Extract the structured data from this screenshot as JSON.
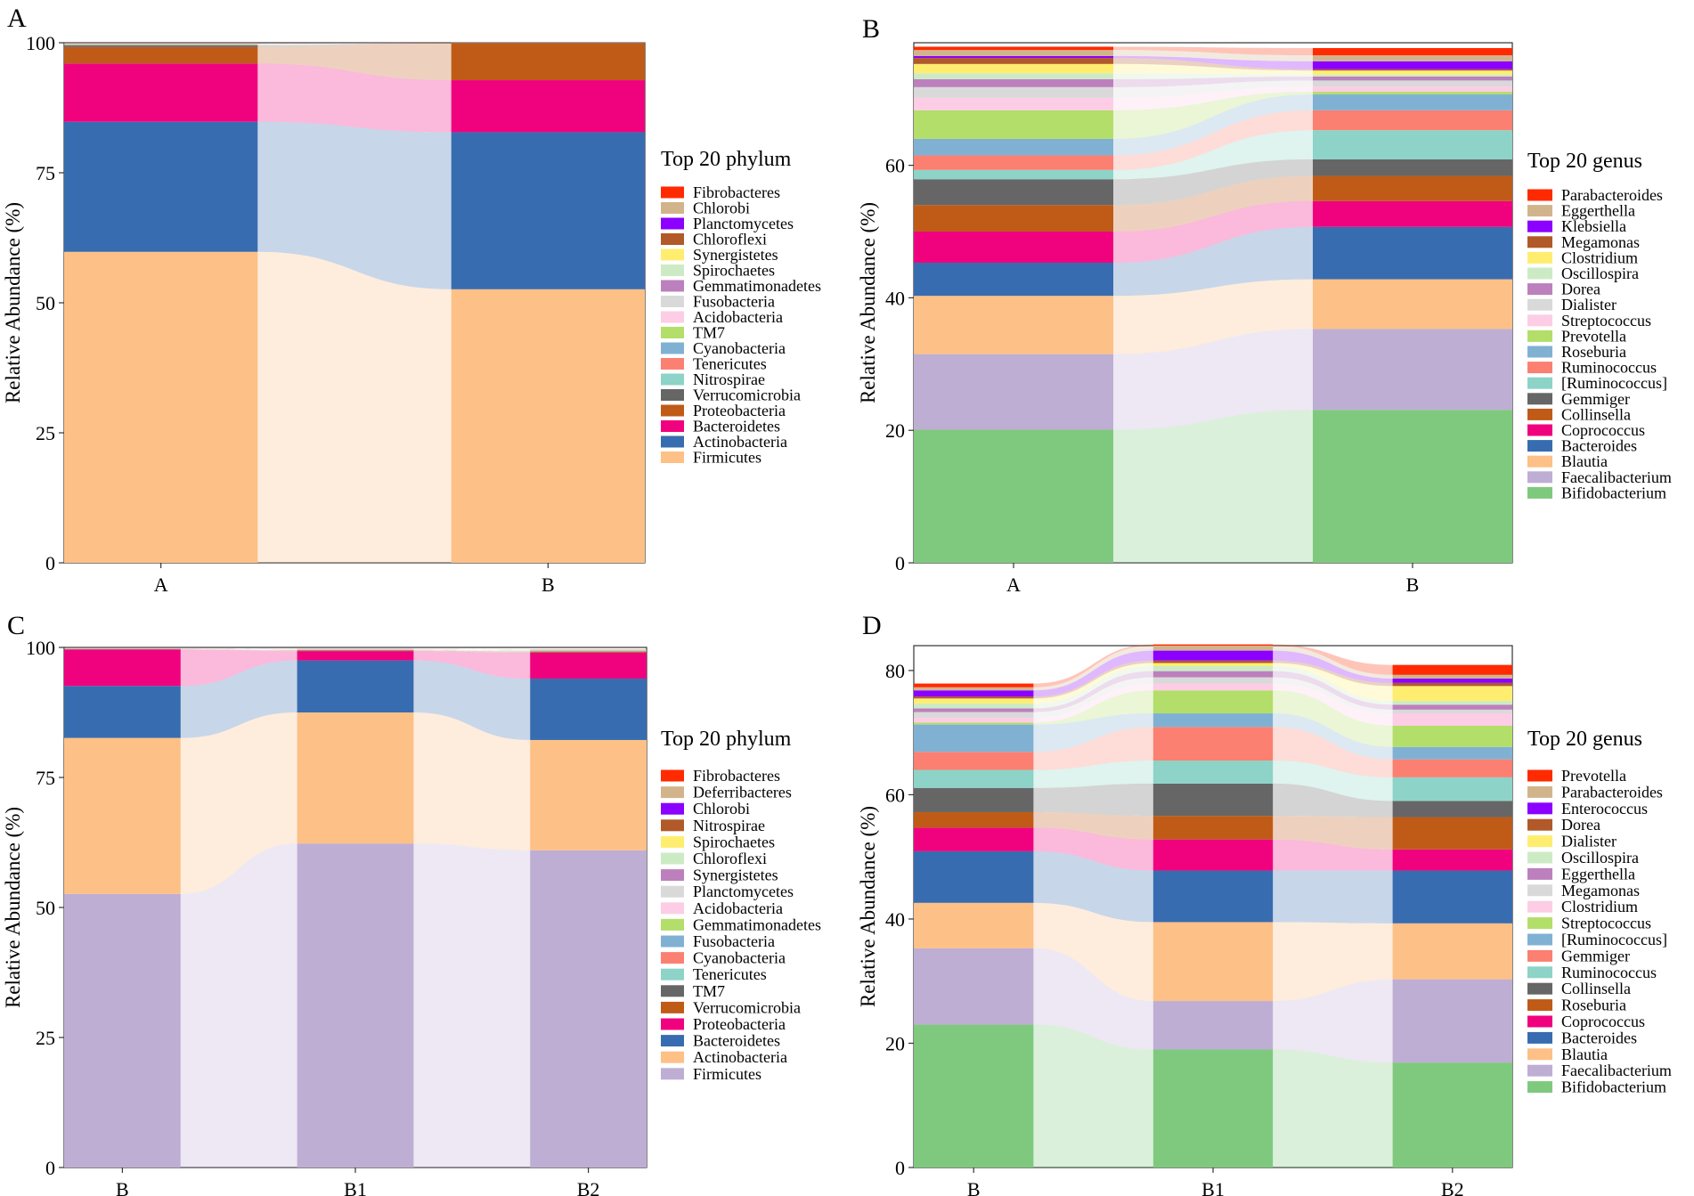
{
  "colors": {
    "Bifidobacterium": "#7FC97F",
    "Faecalibacterium": "#BEAED4",
    "Blautia": "#FDC086",
    "Bacteroides": "#386CB0",
    "Coprococcus": "#F0027F",
    "Collinsella": "#BF5B17",
    "Gemmiger": "#666666",
    "[Ruminococcus]": "#8DD3C7",
    "Ruminococcus": "#FB8072",
    "Roseburia": "#80B1D3",
    "Prevotella": "#B3DE69",
    "Streptococcus": "#FCCDE5",
    "Dialister": "#D9D9D9",
    "Dorea": "#BC80BD",
    "Oscillospira": "#CCEBC5",
    "Clostridium": "#FFED6F",
    "Megamonas": "#B15928",
    "Klebsiella": "#8B00FF",
    "Eggerthella": "#D2B48C",
    "Parabacteroides": "#FF2A00",
    "Enterococcus": "#8B00FF",
    "Firmicutes": "#FDC086",
    "Actinobacteria": "#386CB0",
    "Bacteroidetes": "#F0027F",
    "Proteobacteria": "#BF5B17",
    "Verrucomicrobia": "#666666",
    "Nitrospirae": "#8DD3C7",
    "Tenericutes": "#FB8072",
    "Cyanobacteria": "#80B1D3",
    "TM7": "#B3DE69",
    "Acidobacteria": "#FCCDE5",
    "Fusobacteria": "#D9D9D9",
    "Gemmatimonadetes": "#BC80BD",
    "Spirochaetes": "#CCEBC5",
    "Synergistetes": "#FFED6F",
    "Chloroflexi": "#B15928",
    "Planctomycetes": "#8B00FF",
    "Chlorobi": "#D2B48C",
    "Fibrobacteres": "#FF2A00"
  },
  "chart_data": [
    {
      "panel": "A",
      "type": "bar",
      "subtype": "stacked-alluvial",
      "categories": [
        "A",
        "B"
      ],
      "xlabel": "",
      "ylabel": "Relative Abundance (%)",
      "ylim": [
        0,
        100
      ],
      "yticks": [
        0,
        25,
        50,
        75,
        100
      ],
      "legend_title": "Top 20 phylum",
      "legend": [
        "Fibrobacteres",
        "Chlorobi",
        "Planctomycetes",
        "Chloroflexi",
        "Synergistetes",
        "Spirochaetes",
        "Gemmatimonadetes",
        "Fusobacteria",
        "Acidobacteria",
        "TM7",
        "Cyanobacteria",
        "Tenericutes",
        "Nitrospirae",
        "Verrucomicrobia",
        "Proteobacteria",
        "Bacteroidetes",
        "Actinobacteria",
        "Firmicutes"
      ],
      "series": [
        {
          "name": "Firmicutes",
          "values": [
            59.8,
            52.6
          ]
        },
        {
          "name": "Actinobacteria",
          "values": [
            25.0,
            30.2
          ]
        },
        {
          "name": "Bacteroidetes",
          "values": [
            11.2,
            10.0
          ]
        },
        {
          "name": "Proteobacteria",
          "values": [
            3.2,
            7.1
          ]
        },
        {
          "name": "Verrucomicrobia",
          "values": [
            0.3,
            0.05
          ]
        },
        {
          "name": "Nitrospirae",
          "values": [
            0.1,
            0.02
          ]
        },
        {
          "name": "Tenericutes",
          "values": [
            0.1,
            0.02
          ]
        },
        {
          "name": "Cyanobacteria",
          "values": [
            0.05,
            0.01
          ]
        },
        {
          "name": "TM7",
          "values": [
            0.05,
            0.01
          ]
        },
        {
          "name": "Acidobacteria",
          "values": [
            0.03,
            0.01
          ]
        },
        {
          "name": "Fusobacteria",
          "values": [
            0.03,
            0.01
          ]
        },
        {
          "name": "Gemmatimonadetes",
          "values": [
            0.02,
            0.01
          ]
        },
        {
          "name": "Spirochaetes",
          "values": [
            0.02,
            0.01
          ]
        },
        {
          "name": "Synergistetes",
          "values": [
            0.02,
            0.01
          ]
        },
        {
          "name": "Chloroflexi",
          "values": [
            0.02,
            0.01
          ]
        },
        {
          "name": "Planctomycetes",
          "values": [
            0.01,
            0.01
          ]
        },
        {
          "name": "Chlorobi",
          "values": [
            0.01,
            0.01
          ]
        },
        {
          "name": "Fibrobacteres",
          "values": [
            0.01,
            0.01
          ]
        }
      ]
    },
    {
      "panel": "B",
      "type": "bar",
      "subtype": "stacked-alluvial",
      "categories": [
        "A",
        "B"
      ],
      "xlabel": "",
      "ylabel": "Relative Abundance (%)",
      "ylim": [
        0,
        78.5
      ],
      "yticks": [
        0,
        20,
        40,
        60
      ],
      "legend_title": "Top 20 genus",
      "legend": [
        "Parabacteroides",
        "Eggerthella",
        "Klebsiella",
        "Megamonas",
        "Clostridium",
        "Oscillospira",
        "Dorea",
        "Dialister",
        "Streptococcus",
        "Prevotella",
        "Roseburia",
        "Ruminococcus",
        "[Ruminococcus]",
        "Gemmiger",
        "Collinsella",
        "Coprococcus",
        "Bacteroides",
        "Blautia",
        "Faecalibacterium",
        "Bifidobacterium"
      ],
      "series": [
        {
          "name": "Bifidobacterium",
          "values": [
            20.1,
            23.1
          ]
        },
        {
          "name": "Faecalibacterium",
          "values": [
            11.4,
            12.2
          ]
        },
        {
          "name": "Blautia",
          "values": [
            8.8,
            7.5
          ]
        },
        {
          "name": "Bacteroides",
          "values": [
            5.0,
            7.9
          ]
        },
        {
          "name": "Coprococcus",
          "values": [
            4.7,
            3.9
          ]
        },
        {
          "name": "Collinsella",
          "values": [
            4.0,
            3.8
          ]
        },
        {
          "name": "Gemmiger",
          "values": [
            3.9,
            2.5
          ]
        },
        {
          "name": "[Ruminococcus]",
          "values": [
            1.4,
            4.4
          ]
        },
        {
          "name": "Ruminococcus",
          "values": [
            2.2,
            3.0
          ]
        },
        {
          "name": "Roseburia",
          "values": [
            2.5,
            2.4
          ]
        },
        {
          "name": "Prevotella",
          "values": [
            4.3,
            0.4
          ]
        },
        {
          "name": "Streptococcus",
          "values": [
            1.9,
            0.8
          ]
        },
        {
          "name": "Dialister",
          "values": [
            1.6,
            0.9
          ]
        },
        {
          "name": "Dorea",
          "values": [
            1.2,
            0.6
          ]
        },
        {
          "name": "Oscillospira",
          "values": [
            0.9,
            0.3
          ]
        },
        {
          "name": "Clostridium",
          "values": [
            1.4,
            0.6
          ]
        },
        {
          "name": "Megamonas",
          "values": [
            0.9,
            0.2
          ]
        },
        {
          "name": "Klebsiella",
          "values": [
            0.3,
            1.2
          ]
        },
        {
          "name": "Eggerthella",
          "values": [
            0.9,
            0.9
          ]
        },
        {
          "name": "Parabacteroides",
          "values": [
            0.5,
            1.1
          ]
        }
      ]
    },
    {
      "panel": "C",
      "type": "bar",
      "subtype": "stacked-alluvial",
      "categories": [
        "B",
        "B1",
        "B2"
      ],
      "xlabel": "",
      "ylabel": "Relative Abundance (%)",
      "ylim": [
        0,
        100
      ],
      "yticks": [
        0,
        25,
        50,
        75,
        100
      ],
      "legend_title": "Top 20 phylum",
      "legend": [
        "Fibrobacteres",
        "Deferribacteres",
        "Chlorobi",
        "Nitrospirae",
        "Spirochaetes",
        "Chloroflexi",
        "Synergistetes",
        "Planctomycetes",
        "Acidobacteria",
        "Gemmatimonadetes",
        "Fusobacteria",
        "Cyanobacteria",
        "Tenericutes",
        "TM7",
        "Verrucomicrobia",
        "Proteobacteria",
        "Bacteroidetes",
        "Actinobacteria",
        "Firmicutes"
      ],
      "colors_override": {
        "Firmicutes": "#BEAED4",
        "Actinobacteria": "#FDC086",
        "Bacteroidetes": "#386CB0",
        "Proteobacteria": "#F0027F",
        "Verrucomicrobia": "#BF5B17",
        "TM7": "#666666",
        "Tenericutes": "#8DD3C7",
        "Cyanobacteria": "#FB8072",
        "Fusobacteria": "#80B1D3",
        "Gemmatimonadetes": "#B3DE69",
        "Acidobacteria": "#FCCDE5",
        "Planctomycetes": "#D9D9D9",
        "Synergistetes": "#BC80BD",
        "Chloroflexi": "#CCEBC5",
        "Spirochaetes": "#FFED6F",
        "Nitrospirae": "#B15928",
        "Chlorobi": "#8B00FF",
        "Deferribacteres": "#D2B48C",
        "Fibrobacteres": "#FF2A00"
      },
      "series": [
        {
          "name": "Firmicutes",
          "values": [
            52.6,
            62.3,
            61.0
          ]
        },
        {
          "name": "Actinobacteria",
          "values": [
            30.0,
            25.2,
            21.2
          ]
        },
        {
          "name": "Bacteroidetes",
          "values": [
            10.0,
            10.0,
            11.8
          ]
        },
        {
          "name": "Proteobacteria",
          "values": [
            7.0,
            1.8,
            5.0
          ]
        },
        {
          "name": "Verrucomicrobia",
          "values": [
            0.05,
            0.1,
            0.2
          ]
        },
        {
          "name": "TM7",
          "values": [
            0.02,
            0.05,
            0.05
          ]
        },
        {
          "name": "Tenericutes",
          "values": [
            0.02,
            0.05,
            0.05
          ]
        },
        {
          "name": "Cyanobacteria",
          "values": [
            0.01,
            0.05,
            0.05
          ]
        },
        {
          "name": "Fusobacteria",
          "values": [
            0.01,
            0.03,
            0.05
          ]
        },
        {
          "name": "Gemmatimonadetes",
          "values": [
            0.01,
            0.02,
            0.05
          ]
        },
        {
          "name": "Acidobacteria",
          "values": [
            0.01,
            0.02,
            0.03
          ]
        },
        {
          "name": "Planctomycetes",
          "values": [
            0.01,
            0.02,
            0.03
          ]
        },
        {
          "name": "Synergistetes",
          "values": [
            0.01,
            0.02,
            0.02
          ]
        },
        {
          "name": "Chloroflexi",
          "values": [
            0.01,
            0.01,
            0.02
          ]
        },
        {
          "name": "Spirochaetes",
          "values": [
            0.01,
            0.01,
            0.02
          ]
        },
        {
          "name": "Nitrospirae",
          "values": [
            0.01,
            0.01,
            0.02
          ]
        },
        {
          "name": "Chlorobi",
          "values": [
            0.01,
            0.01,
            0.01
          ]
        },
        {
          "name": "Deferribacteres",
          "values": [
            0.01,
            0.01,
            0.01
          ]
        },
        {
          "name": "Fibrobacteres",
          "values": [
            0.01,
            0.01,
            0.01
          ]
        }
      ]
    },
    {
      "panel": "D",
      "type": "bar",
      "subtype": "stacked-alluvial",
      "categories": [
        "B",
        "B1",
        "B2"
      ],
      "xlabel": "",
      "ylabel": "Relative Abundance (%)",
      "ylim": [
        0,
        84
      ],
      "yticks": [
        0,
        20,
        40,
        60,
        80
      ],
      "legend_title": "Top 20 genus",
      "legend": [
        "Prevotella",
        "Parabacteroides",
        "Enterococcus",
        "Dorea",
        "Dialister",
        "Oscillospira",
        "Eggerthella",
        "Megamonas",
        "Clostridium",
        "Streptococcus",
        "[Ruminococcus]",
        "Gemmiger",
        "Ruminococcus",
        "Collinsella",
        "Roseburia",
        "Coprococcus",
        "Bacteroides",
        "Blautia",
        "Faecalibacterium",
        "Bifidobacterium"
      ],
      "colors_override": {
        "Bifidobacterium": "#7FC97F",
        "Faecalibacterium": "#BEAED4",
        "Blautia": "#FDC086",
        "Bacteroides": "#386CB0",
        "Coprococcus": "#F0027F",
        "Roseburia": "#BF5B17",
        "Collinsella": "#666666",
        "Ruminococcus": "#8DD3C7",
        "Gemmiger": "#FB8072",
        "[Ruminococcus]": "#80B1D3",
        "Streptococcus": "#B3DE69",
        "Clostridium": "#FCCDE5",
        "Megamonas": "#D9D9D9",
        "Eggerthella": "#BC80BD",
        "Oscillospira": "#CCEBC5",
        "Dialister": "#FFED6F",
        "Dorea": "#B15928",
        "Enterococcus": "#8B00FF",
        "Parabacteroides": "#D2B48C",
        "Prevotella": "#FF2A00"
      },
      "series": [
        {
          "name": "Bifidobacterium",
          "values": [
            23.0,
            19.0,
            16.9
          ]
        },
        {
          "name": "Faecalibacterium",
          "values": [
            12.3,
            7.8,
            13.4
          ]
        },
        {
          "name": "Blautia",
          "values": [
            7.3,
            12.7,
            9.0
          ]
        },
        {
          "name": "Bacteroides",
          "values": [
            8.3,
            8.3,
            8.5
          ]
        },
        {
          "name": "Coprococcus",
          "values": [
            3.8,
            5.0,
            3.4
          ]
        },
        {
          "name": "Roseburia",
          "values": [
            2.5,
            3.8,
            5.2
          ]
        },
        {
          "name": "Collinsella",
          "values": [
            3.9,
            5.2,
            2.6
          ]
        },
        {
          "name": "Ruminococcus",
          "values": [
            2.9,
            3.7,
            3.8
          ]
        },
        {
          "name": "Gemmiger",
          "values": [
            2.9,
            5.4,
            2.9
          ]
        },
        {
          "name": "[Ruminococcus]",
          "values": [
            4.4,
            2.2,
            2.0
          ]
        },
        {
          "name": "Streptococcus",
          "values": [
            0.3,
            3.7,
            3.4
          ]
        },
        {
          "name": "Clostridium",
          "values": [
            0.8,
            1.1,
            2.0
          ]
        },
        {
          "name": "Megamonas",
          "values": [
            0.9,
            1.0,
            0.6
          ]
        },
        {
          "name": "Eggerthella",
          "values": [
            0.6,
            1.0,
            0.8
          ]
        },
        {
          "name": "Oscillospira",
          "values": [
            0.8,
            0.8,
            0.6
          ]
        },
        {
          "name": "Dialister",
          "values": [
            0.8,
            0.5,
            2.4
          ]
        },
        {
          "name": "Dorea",
          "values": [
            0.3,
            0.4,
            0.5
          ]
        },
        {
          "name": "Enterococcus",
          "values": [
            1.0,
            1.6,
            0.7
          ]
        },
        {
          "name": "Parabacteroides",
          "values": [
            0.5,
            0.8,
            0.6
          ]
        },
        {
          "name": "Prevotella",
          "values": [
            0.6,
            0.2,
            1.6
          ]
        }
      ]
    }
  ]
}
